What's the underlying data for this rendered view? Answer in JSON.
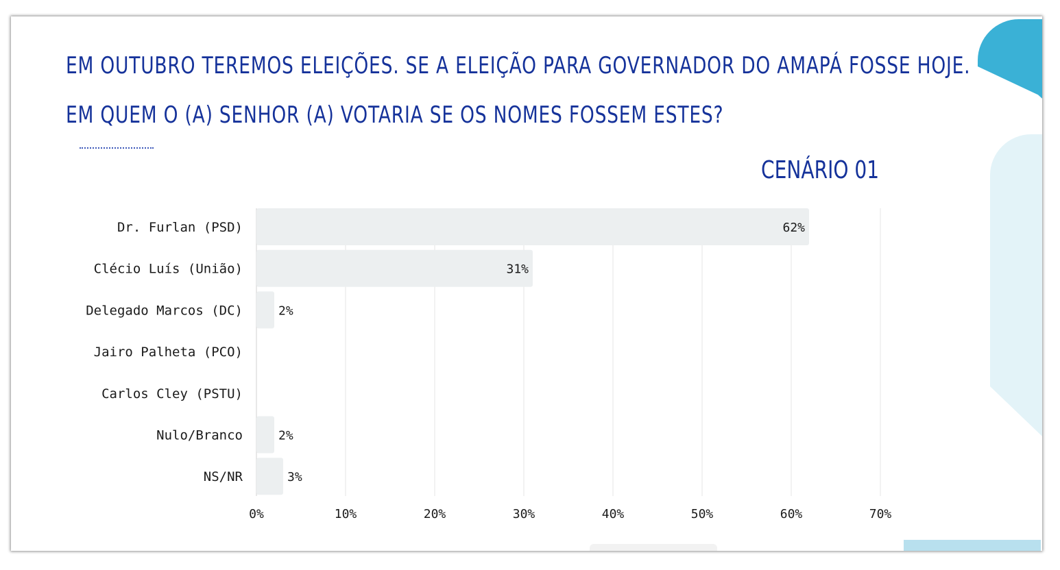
{
  "slide": {
    "title_line1": "EM OUTUBRO TEREMOS ELEIÇÕES. SE A ELEIÇÃO PARA GOVERNADOR DO AMAPÁ FOSSE HOJE.",
    "title_line2": "EM QUEM O (A) SENHOR (A) VOTARIA SE OS NOMES FOSSEM ESTES?",
    "scenario": "CENÁRIO 01"
  },
  "colors": {
    "title": "#15329a",
    "bar": "#eceff0",
    "grid": "#e4e4e4",
    "accent_blue": "#3ab1d6",
    "accent_light": "#e3f3f8"
  },
  "chart_data": {
    "type": "bar",
    "orientation": "horizontal",
    "categories": [
      "Dr. Furlan (PSD)",
      "Clécio Luís (União)",
      "Delegado Marcos (DC)",
      "Jairo Palheta (PCO)",
      "Carlos Cley (PSTU)",
      "Nulo/Branco",
      "NS/NR"
    ],
    "values": [
      62,
      31,
      2,
      0,
      0,
      2,
      3
    ],
    "value_labels": [
      "62%",
      "31%",
      "2%",
      "",
      "",
      "2%",
      "3%"
    ],
    "xlim": [
      0,
      70
    ],
    "x_ticks": [
      0,
      10,
      20,
      30,
      40,
      50,
      60,
      70
    ],
    "x_tick_labels": [
      "0%",
      "10%",
      "20%",
      "30%",
      "40%",
      "50%",
      "60%",
      "70%"
    ],
    "grid": true,
    "legend": false
  }
}
